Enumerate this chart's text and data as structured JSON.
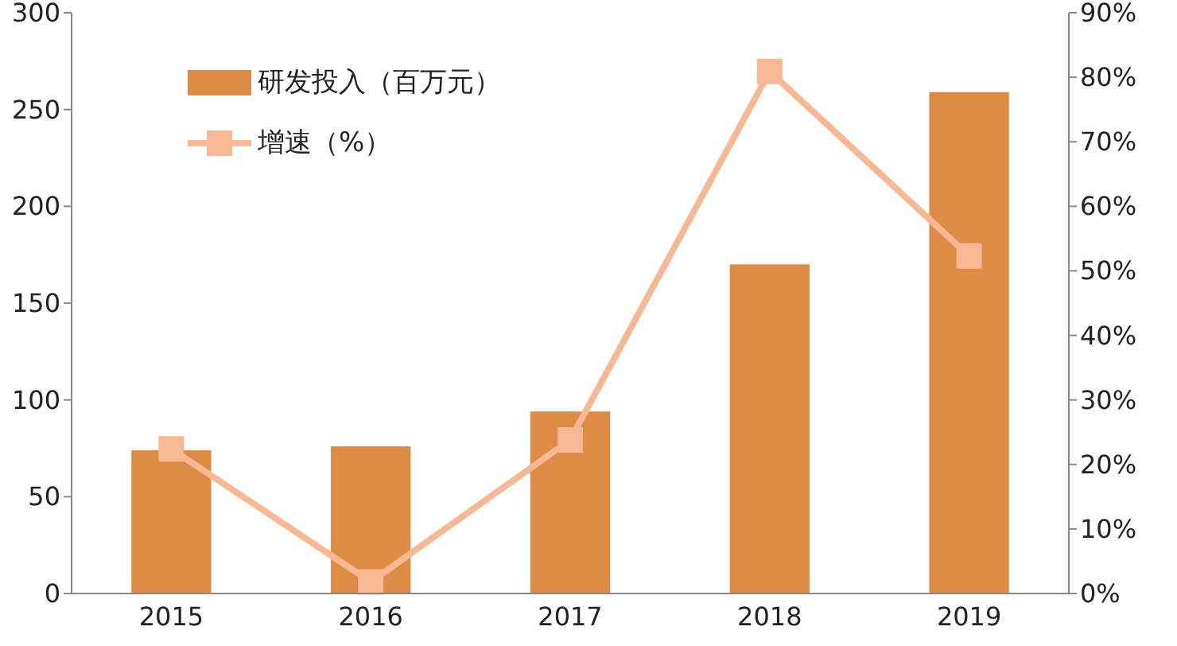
{
  "chart_data": {
    "type": "bar",
    "categories": [
      "2015",
      "2016",
      "2017",
      "2018",
      "2019"
    ],
    "series": [
      {
        "name": "研发投入（百万元）",
        "color": "#dd8b45",
        "values": [
          74,
          76,
          94,
          170,
          259
        ]
      },
      {
        "name": "增速（%）",
        "type": "line",
        "axis": "y2",
        "color": "#f8b894",
        "values": [
          22.4,
          1.8,
          23.8,
          80.9,
          52.3
        ]
      }
    ],
    "ylim": [
      0,
      300
    ],
    "yticks": [
      0,
      50,
      100,
      150,
      200,
      250,
      300
    ],
    "y2lim": [
      0,
      90
    ],
    "y2ticks": [
      {
        "value": 0,
        "label": "0%"
      },
      {
        "value": 10,
        "label": "10%"
      },
      {
        "value": 20,
        "label": "20%"
      },
      {
        "value": 30,
        "label": "30%"
      },
      {
        "value": 40,
        "label": "40%"
      },
      {
        "value": 50,
        "label": "50%"
      },
      {
        "value": 60,
        "label": "60%"
      },
      {
        "value": 70,
        "label": "70%"
      },
      {
        "value": 80,
        "label": "80%"
      },
      {
        "value": 90,
        "label": "90%"
      }
    ],
    "marker": "square",
    "legend": "top left",
    "grid": false
  }
}
